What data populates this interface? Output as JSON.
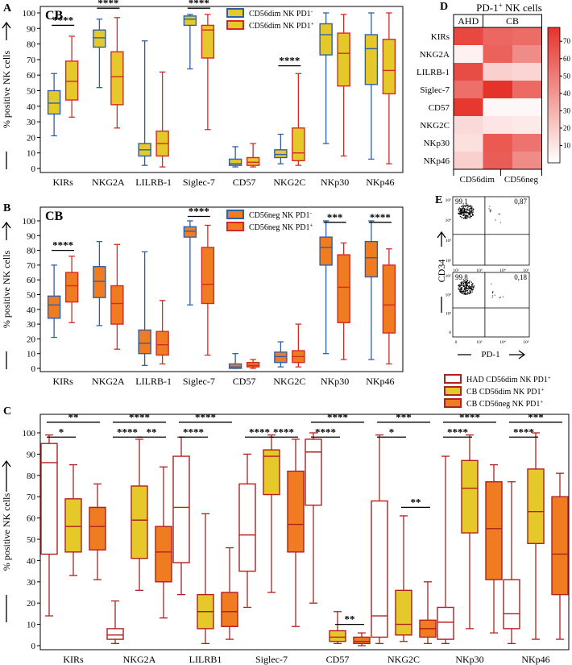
{
  "colors": {
    "blue": "#2e5fa8",
    "red": "#d42a25",
    "darkred": "#b11f1f",
    "yellow": "#e5c92a",
    "orange": "#f07c22",
    "hm_low": "#ffffff",
    "hm_high": "#e5332a"
  },
  "chart_data": [
    {
      "id": "A",
      "type": "box",
      "panel_label": "A",
      "title": "CB",
      "ylabel": "% positive NK cells",
      "ylim": [
        0,
        100
      ],
      "yticks": [
        "0",
        "10",
        "20",
        "30",
        "40",
        "50",
        "60",
        "70",
        "80",
        "90",
        "100"
      ],
      "categories": [
        "KIRs",
        "NKG2A",
        "LILRB-1",
        "Siglec-7",
        "CD57",
        "NKG2C",
        "NKp30",
        "NKp46"
      ],
      "legend": [
        {
          "label": "CD56dim NK PD1",
          "sup": "-",
          "stroke": "blue",
          "fill": "yellow"
        },
        {
          "label": "CD56dim NK PD1",
          "sup": "+",
          "stroke": "red",
          "fill": "yellow"
        }
      ],
      "series": [
        {
          "name": "CD56dim NK PD1-",
          "stroke": "blue",
          "fill": "yellow",
          "boxes": [
            [
              21,
              35,
              42,
              50,
              61
            ],
            [
              52,
              78,
              84,
              89,
              96
            ],
            [
              2,
              8,
              12,
              16,
              82
            ],
            [
              64,
              92,
              96,
              98,
              99
            ],
            [
              1,
              2,
              3,
              6,
              14
            ],
            [
              3,
              7,
              9,
              12,
              22
            ],
            [
              16,
              73,
              86,
              93,
              100
            ],
            [
              6,
              54,
              77,
              86,
              100
            ]
          ]
        },
        {
          "name": "CD56dim NK PD1+",
          "stroke": "red",
          "fill": "yellow",
          "boxes": [
            [
              33,
              44,
              56,
              69,
              85
            ],
            [
              26,
              41,
              59,
              75,
              97
            ],
            [
              1,
              8,
              16,
              24,
              62
            ],
            [
              25,
              71,
              89,
              92,
              99
            ],
            [
              1,
              2,
              4,
              7,
              16
            ],
            [
              2,
              5,
              10,
              26,
              61
            ],
            [
              8,
              53,
              74,
              87,
              99
            ],
            [
              3,
              48,
              63,
              83,
              100
            ]
          ]
        }
      ],
      "significance": [
        {
          "label": "****",
          "from": 0,
          "to": 1,
          "cat": 0,
          "y": 92
        },
        {
          "label": "****",
          "from": 0,
          "to": 1,
          "cat": 1,
          "y": 103
        },
        {
          "label": "****",
          "from": 0,
          "to": 1,
          "cat": 3,
          "y": 103
        },
        {
          "label": "****",
          "from": 0,
          "to": 1,
          "cat": 5,
          "y": 66
        }
      ]
    },
    {
      "id": "B",
      "type": "box",
      "panel_label": "B",
      "title": "CB",
      "ylabel": "% positive NK cells",
      "ylim": [
        0,
        100
      ],
      "yticks": [
        "0",
        "10",
        "20",
        "30",
        "40",
        "50",
        "60",
        "70",
        "80",
        "90",
        "100"
      ],
      "categories": [
        "KIRs",
        "NKG2A",
        "LILRB-1",
        "Siglec-7",
        "CD57",
        "NKG2C",
        "NKp30",
        "NKp46"
      ],
      "legend": [
        {
          "label": "CD56neg NK PD1",
          "sup": "-",
          "stroke": "blue",
          "fill": "orange"
        },
        {
          "label": "CD56neg NK PD1",
          "sup": "+",
          "stroke": "red",
          "fill": "orange"
        }
      ],
      "series": [
        {
          "name": "CD56neg NK PD1-",
          "stroke": "blue",
          "fill": "orange",
          "boxes": [
            [
              21,
              34,
              43,
              49,
              70
            ],
            [
              29,
              48,
              59,
              69,
              86
            ],
            [
              2,
              10,
              17,
              26,
              79
            ],
            [
              43,
              89,
              93,
              96,
              100
            ],
            [
              0,
              0,
              1,
              3,
              10
            ],
            [
              1,
              4,
              8,
              11,
              18
            ],
            [
              10,
              70,
              82,
              89,
              100
            ],
            [
              6,
              62,
              75,
              86,
              100
            ]
          ]
        },
        {
          "name": "CD56neg NK PD1+",
          "stroke": "red",
          "fill": "orange",
          "boxes": [
            [
              31,
              45,
              56,
              65,
              76
            ],
            [
              13,
              30,
              44,
              56,
              84
            ],
            [
              3,
              9,
              16,
              25,
              46
            ],
            [
              9,
              44,
              57,
              82,
              97
            ],
            [
              0,
              1,
              2,
              4,
              6
            ],
            [
              1,
              4,
              8,
              12,
              30
            ],
            [
              6,
              31,
              55,
              77,
              85
            ],
            [
              3,
              24,
              43,
              70,
              81
            ]
          ]
        }
      ],
      "significance": [
        {
          "label": "****",
          "from": 0,
          "to": 1,
          "cat": 0,
          "y": 80
        },
        {
          "label": "****",
          "from": 0,
          "to": 1,
          "cat": 3,
          "y": 103
        },
        {
          "label": "***",
          "from": 0,
          "to": 1,
          "cat": 6,
          "y": 99
        },
        {
          "label": "****",
          "from": 0,
          "to": 1,
          "cat": 7,
          "y": 99
        }
      ]
    },
    {
      "id": "C",
      "type": "box",
      "panel_label": "C",
      "ylabel": "% positive NK cells",
      "ylim": [
        0,
        100
      ],
      "yticks": [
        "0",
        "10",
        "20",
        "30",
        "40",
        "50",
        "60",
        "70",
        "80",
        "90",
        "100"
      ],
      "categories": [
        "KIRs",
        "NKG2A",
        "LILRB1",
        "Siglec-7",
        "CD57",
        "NKG2C",
        "NKp30",
        "NKp46"
      ],
      "legend": [
        {
          "label": "HAD CD56dim NK PD1",
          "sup": "+",
          "stroke": "darkred",
          "fill": "white"
        },
        {
          "label": "CB CD56dim NK PD1",
          "sup": "+",
          "stroke": "darkred",
          "fill": "yellow"
        },
        {
          "label": "CB CD56neg NK PD1",
          "sup": "+",
          "stroke": "darkred",
          "fill": "orange"
        }
      ],
      "series": [
        {
          "name": "HAD CD56dim NK PD1+",
          "stroke": "darkred",
          "fill": "white",
          "boxes": [
            [
              14,
              43,
              86,
              95,
              99
            ],
            [
              1,
              3,
              5,
              8,
              21
            ],
            [
              24,
              39,
              65,
              89,
              98
            ],
            [
              18,
              35,
              52,
              76,
              90
            ],
            [
              20,
              66,
              91,
              97,
              100
            ],
            [
              1,
              4,
              14,
              68,
              99
            ],
            [
              1,
              3,
              11,
              18,
              89
            ],
            [
              1,
              8,
              15,
              31,
              77
            ]
          ]
        },
        {
          "name": "CB CD56dim NK PD1+",
          "stroke": "darkred",
          "fill": "yellow",
          "boxes": [
            [
              33,
              44,
              56,
              69,
              85
            ],
            [
              26,
              41,
              59,
              75,
              97
            ],
            [
              1,
              8,
              16,
              24,
              62
            ],
            [
              25,
              71,
              89,
              92,
              99
            ],
            [
              1,
              2,
              4,
              7,
              16
            ],
            [
              2,
              5,
              10,
              26,
              61
            ],
            [
              8,
              53,
              74,
              87,
              99
            ],
            [
              3,
              48,
              63,
              83,
              100
            ]
          ]
        },
        {
          "name": "CB CD56neg NK PD1+",
          "stroke": "darkred",
          "fill": "orange",
          "boxes": [
            [
              31,
              45,
              56,
              65,
              76
            ],
            [
              13,
              30,
              44,
              56,
              84
            ],
            [
              3,
              9,
              16,
              25,
              46
            ],
            [
              9,
              44,
              57,
              82,
              97
            ],
            [
              0,
              1,
              2,
              4,
              6
            ],
            [
              1,
              4,
              8,
              12,
              30
            ],
            [
              6,
              31,
              55,
              77,
              85
            ],
            [
              3,
              24,
              43,
              70,
              81
            ]
          ]
        }
      ],
      "significance": [
        {
          "label": "**",
          "from": 0,
          "to": 2,
          "cat": 0,
          "y": 105
        },
        {
          "label": "*",
          "from": 0,
          "to": 1,
          "cat": 0,
          "y": 98
        },
        {
          "label": "****",
          "from": 0,
          "to": 2,
          "cat": 1,
          "y": 105
        },
        {
          "label": "****",
          "from": 0,
          "to": 1,
          "cat": 1,
          "y": 98
        },
        {
          "label": "**",
          "from": 1,
          "to": 2,
          "cat": 1,
          "y": 98
        },
        {
          "label": "****",
          "from": 0,
          "to": 2,
          "cat": 2,
          "y": 105
        },
        {
          "label": "****",
          "from": 0,
          "to": 1,
          "cat": 2,
          "y": 98
        },
        {
          "label": "****",
          "from": 0,
          "to": 1,
          "cat": 3,
          "y": 98
        },
        {
          "label": "****",
          "from": 1,
          "to": 2,
          "cat": 3,
          "y": 98
        },
        {
          "label": "****",
          "from": 0,
          "to": 2,
          "cat": 4,
          "y": 105
        },
        {
          "label": "****",
          "from": 0,
          "to": 1,
          "cat": 4,
          "y": 98
        },
        {
          "label": "**",
          "from": 1,
          "to": 2,
          "cat": 4,
          "y": 10
        },
        {
          "label": "***",
          "from": 0,
          "to": 2,
          "cat": 5,
          "y": 105
        },
        {
          "label": "*",
          "from": 0,
          "to": 1,
          "cat": 5,
          "y": 98
        },
        {
          "label": "**",
          "from": 1,
          "to": 2,
          "cat": 5,
          "y": 65
        },
        {
          "label": "****",
          "from": 0,
          "to": 2,
          "cat": 6,
          "y": 105
        },
        {
          "label": "****",
          "from": 0,
          "to": 1,
          "cat": 6,
          "y": 98
        },
        {
          "label": "***",
          "from": 0,
          "to": 2,
          "cat": 7,
          "y": 105
        },
        {
          "label": "****",
          "from": 0,
          "to": 1,
          "cat": 7,
          "y": 98
        }
      ]
    },
    {
      "id": "D",
      "type": "heatmap",
      "panel_label": "D",
      "title": "PD-1",
      "title_sup": "+",
      "title_rest": " NK cells",
      "group_labels": [
        "AHD",
        "CB"
      ],
      "rows": [
        "KIRs",
        "NKG2A",
        "LILRB-1",
        "Siglec-7",
        "CD57",
        "NKG2C",
        "NKp30",
        "NKp46"
      ],
      "columns": [
        "AHD CD56dim",
        "CB CD56dim",
        "CB CD56neg"
      ],
      "xlabels": [
        "CD56dim",
        "CD56neg"
      ],
      "colorbar_ticks": [
        "10",
        "20",
        "30",
        "40",
        "50",
        "60",
        "70"
      ],
      "colorbar_range": [
        0,
        78
      ],
      "values": [
        [
          70,
          58,
          56
        ],
        [
          5,
          60,
          44
        ],
        [
          68,
          18,
          16
        ],
        [
          55,
          80,
          57
        ],
        [
          76,
          3,
          3
        ],
        [
          14,
          10,
          8
        ],
        [
          12,
          63,
          53
        ],
        [
          18,
          62,
          44
        ]
      ]
    },
    {
      "id": "E",
      "type": "scatter",
      "panel_label": "E",
      "ylabel": "CD34",
      "xlabel": "PD-1",
      "plots": [
        {
          "q_ul": "99,1",
          "q_ur": "0,87",
          "xticks": [
            "10²",
            "10³",
            "10⁴",
            "10⁵"
          ],
          "yticks": [
            "10⁵",
            "10⁴",
            "10³",
            "10²"
          ]
        },
        {
          "q_ul": "99,8",
          "q_ur": "0,18",
          "xticks": [
            "0",
            "10³",
            "10⁴",
            "10⁵"
          ],
          "yticks": [
            "10⁵",
            "10⁴",
            "10³",
            "0"
          ]
        }
      ]
    }
  ]
}
